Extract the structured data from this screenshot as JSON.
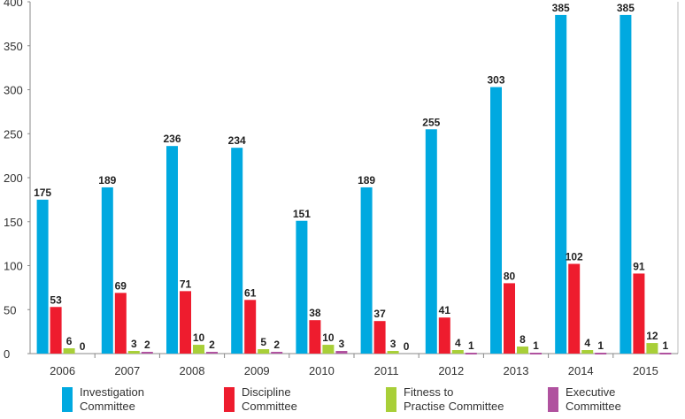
{
  "chart_data": {
    "type": "bar",
    "categories": [
      "2006",
      "2007",
      "2008",
      "2009",
      "2010",
      "2011",
      "2012",
      "2013",
      "2014",
      "2015"
    ],
    "series": [
      {
        "name": "Investigation Committee",
        "color": "#00a9e0",
        "values": [
          175,
          189,
          236,
          234,
          151,
          189,
          255,
          303,
          385,
          385
        ]
      },
      {
        "name": "Discipline Committee",
        "color": "#ee1c2e",
        "values": [
          53,
          69,
          71,
          61,
          38,
          37,
          41,
          80,
          102,
          91
        ]
      },
      {
        "name": "Fitness to Practise Committee",
        "color": "#a8cf38",
        "values": [
          6,
          3,
          10,
          5,
          10,
          3,
          4,
          8,
          4,
          12
        ]
      },
      {
        "name": "Executive Committee",
        "color": "#b0529f",
        "values": [
          0,
          2,
          2,
          2,
          3,
          0,
          1,
          1,
          1,
          1
        ]
      }
    ],
    "title": "",
    "xlabel": "",
    "ylabel": "",
    "ylim": [
      0,
      400
    ],
    "yticks": [
      0,
      50,
      100,
      150,
      200,
      250,
      300,
      350,
      400
    ],
    "grid": false,
    "legend_position": "bottom"
  },
  "legend": [
    {
      "label_line1": "Investigation",
      "label_line2": "Committee"
    },
    {
      "label_line1": "Discipline",
      "label_line2": "Committee"
    },
    {
      "label_line1": "Fitness to",
      "label_line2": "Practise Committee"
    },
    {
      "label_line1": "Executive",
      "label_line2": "Committee"
    }
  ]
}
